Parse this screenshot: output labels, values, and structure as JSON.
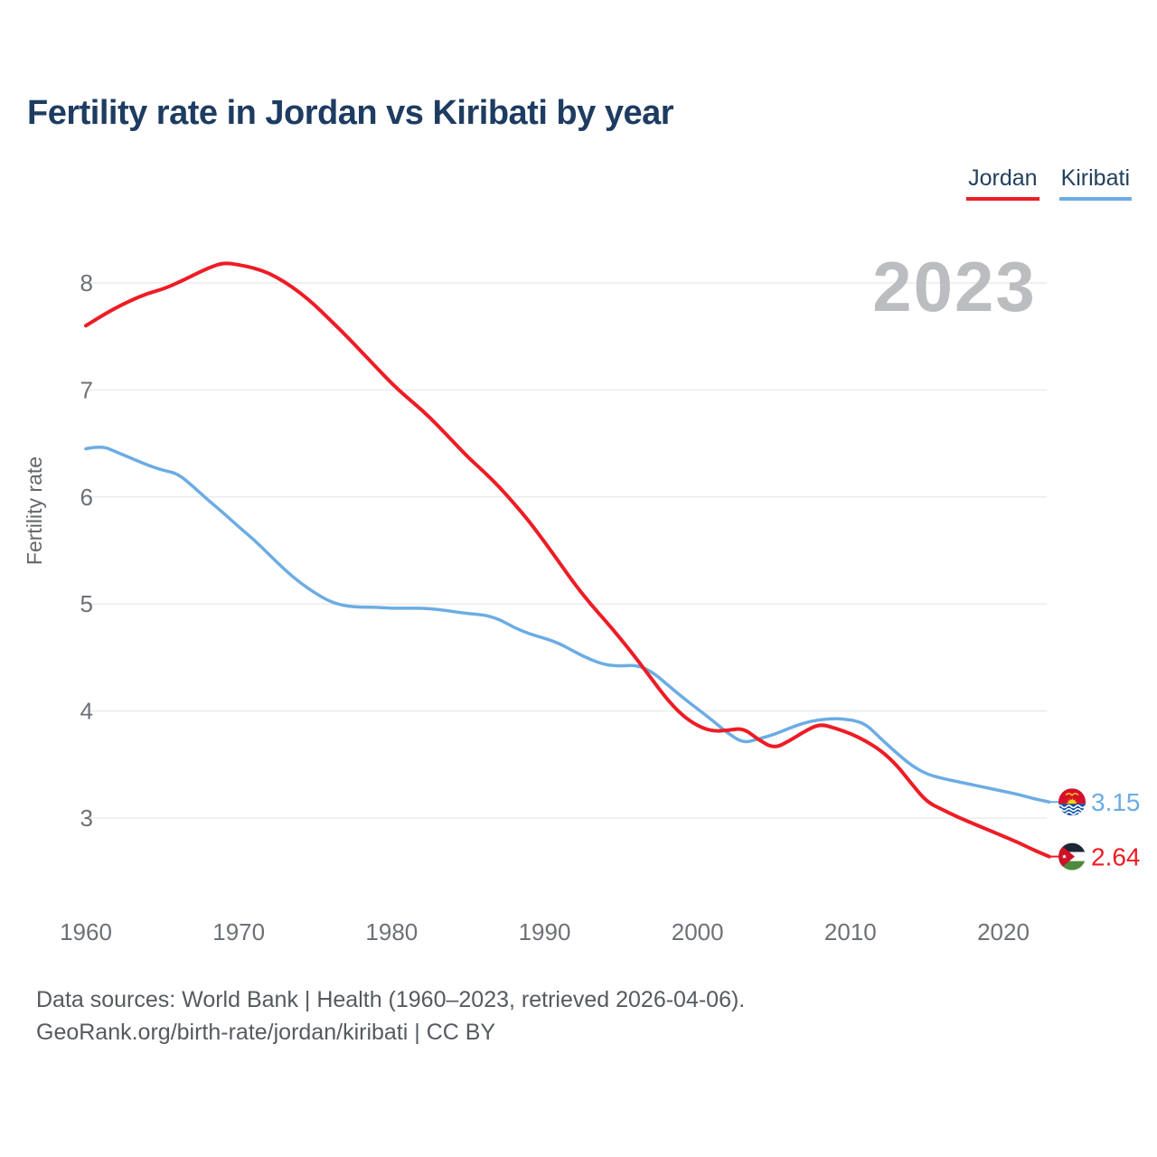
{
  "title": "Fertility rate in Jordan vs Kiribati by year",
  "watermark": "2023",
  "colors": {
    "jordan_red": "#ee1c25",
    "kiribati_blue": "#6cace4",
    "grid": "#ececec",
    "navy_text": "#1e3c61"
  },
  "legend": [
    {
      "label": "Jordan",
      "color": "#ee1c25"
    },
    {
      "label": "Kiribati",
      "color": "#6cace4"
    }
  ],
  "end_labels": [
    {
      "series": "Kiribati",
      "value": "3.15",
      "flag": "kiribati-flag"
    },
    {
      "series": "Jordan",
      "value": "2.64",
      "flag": "jordan-flag"
    }
  ],
  "footer": {
    "line1": "Data sources: World Bank | Health (1960–2023, retrieved 2026-04-06).",
    "line2": "GeoRank.org/birth-rate/jordan/kiribati | CC BY"
  },
  "chart_data": {
    "type": "line",
    "title": "Fertility rate in Jordan vs Kiribati by year",
    "xlabel": "",
    "ylabel": "Fertility rate",
    "grid": true,
    "legend_position": "top-right",
    "xlim": [
      1960,
      2023
    ],
    "ylim": [
      2.4,
      8.45
    ],
    "x_ticks": [
      1960,
      1970,
      1980,
      1990,
      2000,
      2010,
      2020
    ],
    "y_ticks": [
      3,
      4,
      5,
      6,
      7,
      8
    ],
    "years": [
      1960,
      1961,
      1962,
      1963,
      1964,
      1965,
      1966,
      1967,
      1968,
      1969,
      1970,
      1971,
      1972,
      1973,
      1974,
      1975,
      1976,
      1977,
      1978,
      1979,
      1980,
      1981,
      1982,
      1983,
      1984,
      1985,
      1986,
      1987,
      1988,
      1989,
      1990,
      1991,
      1992,
      1993,
      1994,
      1995,
      1996,
      1997,
      1998,
      1999,
      2000,
      2001,
      2002,
      2003,
      2004,
      2005,
      2006,
      2007,
      2008,
      2009,
      2010,
      2011,
      2012,
      2013,
      2014,
      2015,
      2016,
      2017,
      2018,
      2019,
      2020,
      2021,
      2022,
      2023
    ],
    "series": [
      {
        "name": "Jordan",
        "color": "#ee1c25",
        "values": [
          7.6,
          7.69,
          7.77,
          7.84,
          7.9,
          7.94,
          8.0,
          8.07,
          8.14,
          8.19,
          8.17,
          8.14,
          8.09,
          8.01,
          7.91,
          7.79,
          7.65,
          7.51,
          7.36,
          7.21,
          7.06,
          6.93,
          6.81,
          6.67,
          6.52,
          6.37,
          6.24,
          6.1,
          5.94,
          5.77,
          5.58,
          5.38,
          5.18,
          5.0,
          4.84,
          4.67,
          4.49,
          4.3,
          4.11,
          3.96,
          3.86,
          3.81,
          3.82,
          3.84,
          3.73,
          3.65,
          3.72,
          3.81,
          3.88,
          3.84,
          3.79,
          3.72,
          3.63,
          3.5,
          3.32,
          3.15,
          3.08,
          3.01,
          2.95,
          2.89,
          2.83,
          2.77,
          2.7,
          2.64
        ]
      },
      {
        "name": "Kiribati",
        "color": "#6cace4",
        "values": [
          6.45,
          6.48,
          6.42,
          6.36,
          6.3,
          6.25,
          6.22,
          6.1,
          5.97,
          5.85,
          5.72,
          5.6,
          5.46,
          5.32,
          5.2,
          5.1,
          5.02,
          4.98,
          4.97,
          4.97,
          4.96,
          4.96,
          4.96,
          4.95,
          4.93,
          4.91,
          4.9,
          4.86,
          4.78,
          4.72,
          4.68,
          4.63,
          4.55,
          4.48,
          4.43,
          4.42,
          4.43,
          4.37,
          4.25,
          4.13,
          4.02,
          3.91,
          3.79,
          3.7,
          3.74,
          3.78,
          3.84,
          3.89,
          3.92,
          3.93,
          3.92,
          3.88,
          3.74,
          3.61,
          3.49,
          3.41,
          3.37,
          3.34,
          3.31,
          3.28,
          3.25,
          3.22,
          3.18,
          3.15
        ]
      }
    ]
  }
}
